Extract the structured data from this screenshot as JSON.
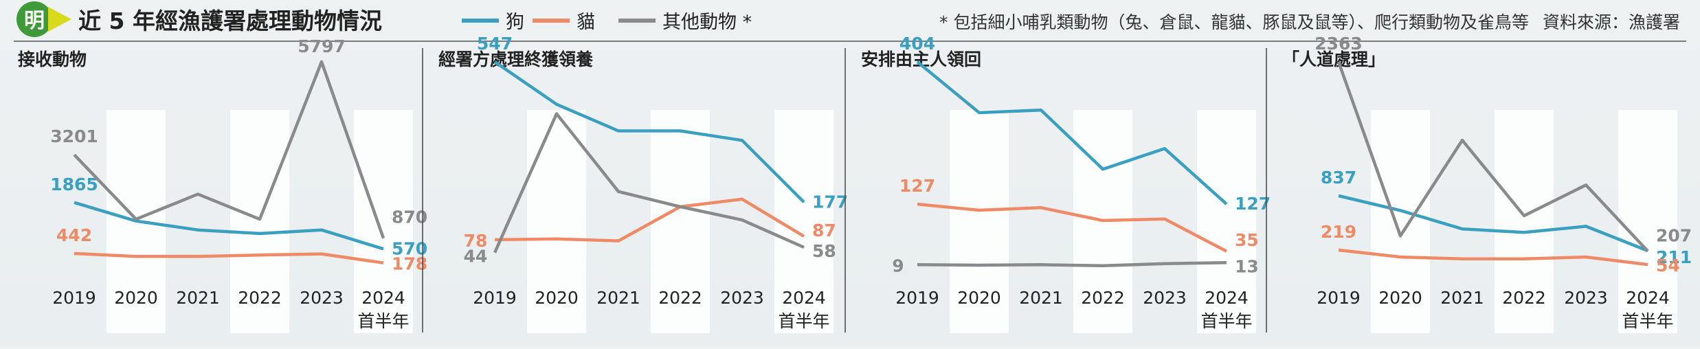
{
  "header": {
    "logo_char": "明",
    "title": "近 5 年經漁護署處理動物情況",
    "legend": [
      {
        "label": "狗",
        "color": "#3a9fc0"
      },
      {
        "label": "貓",
        "color": "#ef8a67"
      },
      {
        "label": "其他動物 *",
        "color": "#8a8a8c"
      }
    ],
    "footnote": "* 包括細小哺乳類動物（兔、倉鼠、龍貓、豚鼠及鼠等）、爬行類動物及雀鳥等",
    "source": "資料來源：漁護署"
  },
  "colors": {
    "dog": "#3a9fc0",
    "cat": "#ef8a67",
    "other": "#8a8a8c"
  },
  "x_labels": [
    "2019",
    "2020",
    "2021",
    "2022",
    "2023",
    "2024"
  ],
  "x_sublabel": "首半年",
  "chart_data": [
    {
      "type": "line",
      "title": "接收動物",
      "categories": [
        "2019",
        "2020",
        "2021",
        "2022",
        "2023",
        "2024首半年"
      ],
      "series": [
        {
          "name": "狗",
          "values": [
            1865,
            1350,
            1100,
            1000,
            1100,
            570
          ],
          "labels": [
            "1865",
            "",
            "",
            "",
            "",
            "570"
          ]
        },
        {
          "name": "貓",
          "values": [
            442,
            360,
            360,
            400,
            430,
            178
          ],
          "labels": [
            "442",
            "",
            "",
            "",
            "",
            "178"
          ]
        },
        {
          "name": "其他動物 *",
          "values": [
            3201,
            1400,
            2100,
            1400,
            5797,
            870
          ],
          "labels": [
            "3201",
            "",
            "",
            "",
            "5797",
            "870"
          ]
        }
      ]
    },
    {
      "type": "line",
      "title": "經署方處理終獲領養",
      "categories": [
        "2019",
        "2020",
        "2021",
        "2022",
        "2023",
        "2024首半年"
      ],
      "series": [
        {
          "name": "狗",
          "values": [
            547,
            435,
            365,
            365,
            340,
            177
          ],
          "labels": [
            "547",
            "",
            "",
            "",
            "",
            "177"
          ]
        },
        {
          "name": "貓",
          "values": [
            78,
            80,
            75,
            165,
            185,
            87
          ],
          "labels": [
            "78",
            "",
            "",
            "",
            "",
            "87"
          ]
        },
        {
          "name": "其他動物 *",
          "values": [
            44,
            410,
            205,
            165,
            130,
            58
          ],
          "labels": [
            "44",
            "",
            "",
            "",
            "",
            "58"
          ]
        }
      ]
    },
    {
      "type": "line",
      "title": "安排由主人領回",
      "categories": [
        "2019",
        "2020",
        "2021",
        "2022",
        "2023",
        "2024首半年"
      ],
      "series": [
        {
          "name": "狗",
          "values": [
            404,
            305,
            310,
            195,
            235,
            127
          ],
          "labels": [
            "404",
            "",
            "",
            "",
            "",
            "127"
          ]
        },
        {
          "name": "貓",
          "values": [
            127,
            115,
            120,
            95,
            98,
            35
          ],
          "labels": [
            "127",
            "",
            "",
            "",
            "",
            "35"
          ]
        },
        {
          "name": "其他動物 *",
          "values": [
            9,
            8,
            9,
            7,
            11,
            13
          ],
          "labels": [
            "9",
            "",
            "",
            "",
            "",
            "13"
          ]
        }
      ]
    },
    {
      "type": "line",
      "title": "「人道處理」",
      "categories": [
        "2019",
        "2020",
        "2021",
        "2022",
        "2023",
        "2024首半年"
      ],
      "series": [
        {
          "name": "狗",
          "values": [
            837,
            670,
            460,
            420,
            490,
            211
          ],
          "labels": [
            "837",
            "",
            "",
            "",
            "",
            "211"
          ]
        },
        {
          "name": "貓",
          "values": [
            219,
            140,
            120,
            120,
            140,
            54
          ],
          "labels": [
            "219",
            "",
            "",
            "",
            "",
            "54"
          ]
        },
        {
          "name": "其他動物 *",
          "values": [
            2363,
            380,
            1470,
            610,
            960,
            207
          ],
          "labels": [
            "2363",
            "",
            "",
            "",
            "",
            "207"
          ]
        }
      ]
    }
  ]
}
